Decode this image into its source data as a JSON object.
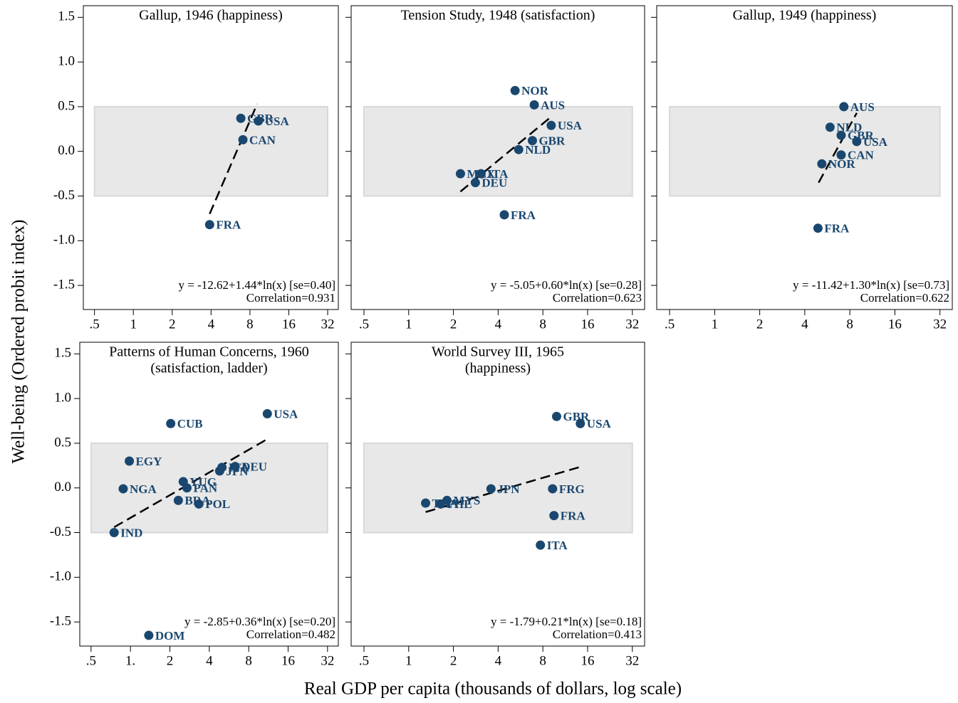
{
  "y_label": "Well-being (Ordered probit index)",
  "x_label": "Real GDP per capita (thousands of dollars, log scale)",
  "chart_data": [
    {
      "type": "scatter",
      "title": "Gallup, 1946 (happiness)",
      "xlog": true,
      "xlim": [
        0.41,
        38.7
      ],
      "ylim": [
        -1.77,
        1.63
      ],
      "xticks": [
        {
          "value": 0.5,
          "label": ".5"
        },
        1,
        2,
        4,
        8,
        16,
        32
      ],
      "yticks": [
        -1.5,
        {
          "value": -1,
          "label": "-1.0"
        },
        -0.5,
        {
          "value": 0,
          "label": "0.0"
        },
        0.5,
        {
          "value": 1,
          "label": "1.0"
        },
        1.5
      ],
      "color": "#1a476f",
      "shaded_band": [
        -0.5,
        0.5
      ],
      "labels": [
        "FRA",
        "CAN",
        "GBR",
        "USA"
      ],
      "x": [
        3.9,
        7.06,
        6.8,
        9.3
      ],
      "y": [
        -0.82,
        0.13,
        0.37,
        0.34
      ],
      "fit_line": {
        "x": [
          3.9,
          9.1
        ],
        "y": [
          -0.7,
          0.53
        ]
      },
      "annotations": [
        "y = -12.62+1.44*ln(x) [se=0.40]",
        "Correlation=0.931"
      ]
    },
    {
      "type": "scatter",
      "title": "Tension Study, 1948 (satisfaction)",
      "xlog": true,
      "xlim": [
        0.41,
        38.7
      ],
      "ylim": [
        -1.77,
        1.63
      ],
      "xticks": [
        {
          "value": 0.5,
          "label": ".5"
        },
        1,
        2,
        4,
        8,
        16,
        32
      ],
      "yticks": [
        -1.5,
        -1,
        -0.5,
        0,
        0.5,
        1,
        1.5
      ],
      "color": "#1a476f",
      "shaded_band": [
        -0.5,
        0.5
      ],
      "labels": [
        "NOR",
        "AUS",
        "USA",
        "GBR",
        "NLD",
        "MEX",
        "ITA",
        "DEU",
        "FRA"
      ],
      "x": [
        5.2,
        7.0,
        9.1,
        6.8,
        5.5,
        2.23,
        3.07,
        2.81,
        4.4
      ],
      "y": [
        0.68,
        0.52,
        0.29,
        0.12,
        0.02,
        -0.25,
        -0.25,
        -0.35,
        -0.71
      ],
      "fit_line": {
        "x": [
          2.23,
          9.3
        ],
        "y": [
          -0.45,
          0.4
        ]
      },
      "annotations": [
        "y = -5.05+0.60*ln(x) [se=0.28]",
        "Correlation=0.623"
      ]
    },
    {
      "type": "scatter",
      "title": "Gallup, 1949 (happiness)",
      "xlog": true,
      "xlim": [
        0.41,
        38.7
      ],
      "ylim": [
        -1.77,
        1.63
      ],
      "xticks": [
        {
          "value": 0.5,
          "label": ".5"
        },
        1,
        2,
        4,
        8,
        16,
        32
      ],
      "yticks": [
        -1.5,
        -1,
        -0.5,
        0,
        0.5,
        1,
        1.5
      ],
      "color": "#1a476f",
      "shaded_band": [
        -0.5,
        0.5
      ],
      "labels": [
        "AUS",
        "NLD",
        "GBR",
        "USA",
        "CAN",
        "NOR",
        "FRA"
      ],
      "x": [
        7.3,
        5.9,
        7.0,
        8.9,
        7.0,
        5.2,
        4.9
      ],
      "y": [
        0.5,
        0.27,
        0.18,
        0.11,
        -0.04,
        -0.14,
        -0.86
      ],
      "fit_line": {
        "x": [
          4.95,
          8.9
        ],
        "y": [
          -0.35,
          0.43
        ]
      },
      "annotations": [
        "y = -11.42+1.30*ln(x) [se=0.73]",
        "Correlation=0.622"
      ]
    },
    {
      "type": "scatter",
      "title": "Patterns of Human Concerns, 1960",
      "subtitle": "(satisfaction, ladder)",
      "xlog": true,
      "xlim": [
        0.41,
        38.7
      ],
      "ylim": [
        -1.77,
        1.63
      ],
      "xticks": [
        {
          "value": 0.5,
          "label": ".5"
        },
        {
          "value": 1,
          "label": "1."
        },
        2,
        4,
        8,
        16,
        32
      ],
      "yticks": [
        -1.5,
        {
          "value": -1,
          "label": "-1.0"
        },
        -0.5,
        {
          "value": 0,
          "label": "0.0"
        },
        0.5,
        {
          "value": 1,
          "label": "1.0"
        },
        1.5
      ],
      "color": "#1a476f",
      "shaded_band": [
        -0.5,
        0.5
      ],
      "labels": [
        "USA",
        "CUB",
        "EGY",
        "NGA",
        "IND",
        "DOM",
        "JPN",
        "ITA",
        "DEU",
        "YUG",
        "PAN",
        "BRA",
        "POL"
      ],
      "x": [
        11.1,
        2.03,
        0.98,
        0.88,
        0.75,
        1.38,
        4.8,
        5.0,
        6.3,
        2.53,
        2.7,
        2.32,
        3.33
      ],
      "y": [
        0.83,
        0.72,
        0.3,
        -0.01,
        -0.5,
        -1.65,
        0.19,
        0.23,
        0.24,
        0.07,
        0.0,
        -0.14,
        -0.18
      ],
      "fit_line": {
        "x": [
          0.75,
          11.2
        ],
        "y": [
          -0.44,
          0.55
        ]
      },
      "annotations": [
        "y = -2.85+0.36*ln(x) [se=0.20]",
        "Correlation=0.482"
      ]
    },
    {
      "type": "scatter",
      "title": "World Survey III, 1965",
      "subtitle": "(happiness)",
      "xlog": true,
      "xlim": [
        0.41,
        38.7
      ],
      "ylim": [
        -1.77,
        1.63
      ],
      "xticks": [
        {
          "value": 0.5,
          "label": ".5"
        },
        1,
        2,
        4,
        8,
        16,
        32
      ],
      "yticks": [
        -1.5,
        -1,
        -0.5,
        0,
        0.5,
        1,
        1.5
      ],
      "color": "#1a476f",
      "shaded_band": [
        -0.5,
        0.5
      ],
      "labels": [
        "GBR",
        "USA",
        "JPN",
        "FRG",
        "FRA",
        "ITA",
        "THA",
        "PHL",
        "MYS"
      ],
      "x": [
        9.9,
        14.3,
        3.58,
        9.3,
        9.5,
        7.7,
        1.3,
        1.64,
        1.81
      ],
      "y": [
        0.8,
        0.72,
        -0.01,
        -0.01,
        -0.31,
        -0.64,
        -0.17,
        -0.18,
        -0.14
      ],
      "fit_line": {
        "x": [
          1.3,
          14.6
        ],
        "y": [
          -0.27,
          0.24
        ]
      },
      "annotations": [
        "y = -1.79+0.21*ln(x) [se=0.18]",
        "Correlation=0.413"
      ]
    }
  ]
}
